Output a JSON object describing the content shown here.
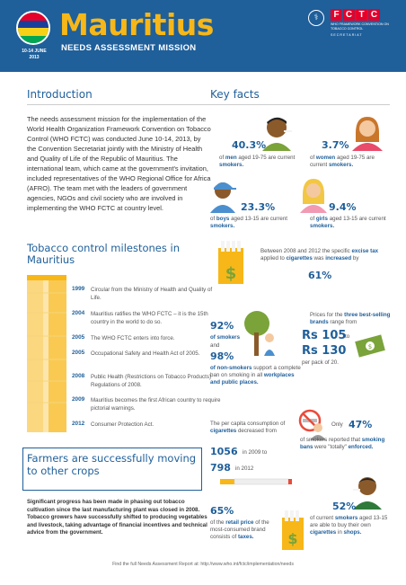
{
  "header": {
    "title": "Mauritius",
    "subtitle": "NEEDS ASSESSMENT MISSION",
    "date_line1": "10-14 JUNE",
    "date_line2": "2013",
    "fctc_letters": [
      "F",
      "C",
      "T",
      "C"
    ],
    "fctc_sub": "WHO FRAMEWORK CONVENTION ON TOBACCO CONTROL",
    "fctc_sub2": "SECRETARIAT",
    "flag_colors": [
      "#e4002b",
      "#1a3f9b",
      "#f7d117",
      "#00a651"
    ]
  },
  "intro": {
    "heading": "Introduction",
    "text": "The needs assessment mission for the implementation of the World Health Organization Framework Convention on Tobacco Control (WHO FCTC) was conducted June 10-14, 2013, by the Convention Secretariat jointly with the Ministry of Health and Quality of Life of the Republic of Mauritius. The international team, which came at the government's invitation, included representatives of the WHO Regional Office for Africa (AFRO). The team met with the leaders of government agencies, NGOs and civil society who are involved in implementing the WHO FCTC at country level."
  },
  "milestones": {
    "heading": "Tobacco control milestones in Mauritius",
    "items": [
      {
        "year": "1999",
        "text": "Circular from the Ministry of Health and Quality of Life."
      },
      {
        "year": "2004",
        "text": "Mauritius ratifies the WHO FCTC – it is the 15th country in the world to do so."
      },
      {
        "year": "2005",
        "text": "The WHO FCTC enters into force."
      },
      {
        "year": "2005",
        "text": "Occupational Safety and Health Act of 2005."
      },
      {
        "year": "2008",
        "text": "Public Health (Restrictions on Tobacco Products) Regulations of 2008."
      },
      {
        "year": "2009",
        "text": "Mauritius becomes the first African country to require pictorial warnings."
      },
      {
        "year": "2012",
        "text": "Consumer Protection Act."
      }
    ]
  },
  "farmers": {
    "heading": "Farmers are successfully moving to other crops",
    "text": "Significant progress has been made in phasing out tobacco cultivation since the last manufacturing plant was closed in 2008. Tobacco growers have successfully shifted to producing vegetables and livestock, taking advantage of financial incentives and technical advice from the government."
  },
  "key_facts": {
    "heading": "Key facts",
    "men": {
      "pct": "40.3%",
      "t1": "of ",
      "b1": "men",
      "t2": " aged 19-75 are current ",
      "b2": "smokers."
    },
    "women": {
      "pct": "3.7%",
      "t1": "of ",
      "b1": "women",
      "t2": " aged 19-75 are current ",
      "b2": "smokers."
    },
    "boys": {
      "pct": "23.3%",
      "t1": "of ",
      "b1": "boys",
      "t2": " aged 13-15 are current ",
      "b2": "smokers."
    },
    "girls": {
      "pct": "9.4%",
      "t1": "of ",
      "b1": "girls",
      "t2": " aged 13-15 are current ",
      "b2": "smokers."
    },
    "tax": {
      "t1": "Between 2008 and 2012 the specific ",
      "b1": "excise tax",
      "t2": " applied to ",
      "b2": "cigarettes",
      "t3": " was ",
      "b3": "increased",
      "t4": " by",
      "pct": "61%"
    },
    "support": {
      "pct1": "92%",
      "l1": "of smokers",
      "l2": "and",
      "pct2": "98%",
      "b1": "of non-smokers",
      "t1": " support a complete ban on smoking in all ",
      "b2": "workplaces and public places."
    },
    "prices": {
      "t1": "Prices for the ",
      "b1": "three best-selling brands",
      "t2": " range from",
      "from": "Rs 105",
      "to_word": "to",
      "to": "Rs 130",
      "per": "per pack of 20."
    },
    "consumption": {
      "t1": "The per capita consumption of ",
      "b1": "cigarettes",
      "t2": " decreased from",
      "v1": "1056",
      "y1": "in 2009 to",
      "v2": "798",
      "y2": "in 2012"
    },
    "bans": {
      "only": "Only",
      "pct": "47%",
      "t1": "of smokers reported that ",
      "b1": "smoking bans",
      "t2": " were \"totally\" ",
      "b2": "enforced."
    },
    "retail": {
      "pct": "65%",
      "t1": "of the ",
      "b1": "retail price",
      "t2": " of the most-consumed brand consists of ",
      "b2": "taxes."
    },
    "quit": {
      "pct": "52%",
      "t1": "of current ",
      "b1": "smokers",
      "t2": " aged 13-15 are able to buy their own ",
      "b2": "cigarettes",
      "t3": " in ",
      "b3": "shops."
    }
  },
  "footer": "Find the full Needs Assessment Report at: http://www.who.int/fctc/implementation/needs"
}
